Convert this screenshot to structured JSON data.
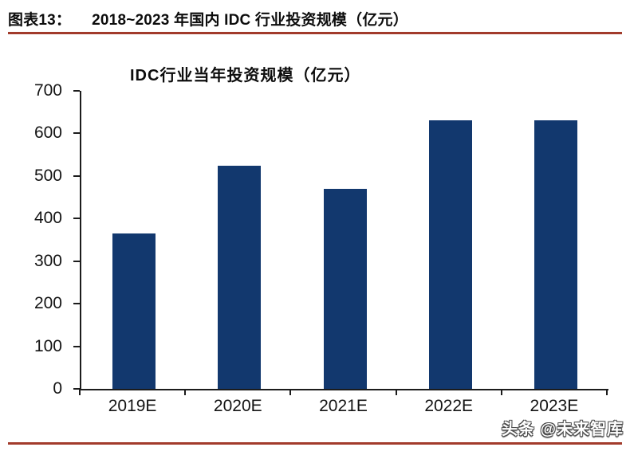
{
  "header": {
    "figure_label": "图表13：",
    "title": "2018~2023 年国内 IDC 行业投资规模（亿元）"
  },
  "watermark": "头条 @未来智库",
  "colors": {
    "bar": "#12386e",
    "rule": "#a23b2c",
    "axis": "#1c1c1c"
  },
  "chart_data": {
    "type": "bar",
    "title": "IDC行业当年投资规模（亿元）",
    "categories": [
      "2019E",
      "2020E",
      "2021E",
      "2022E",
      "2023E"
    ],
    "values": [
      365,
      525,
      470,
      630,
      630
    ],
    "xlabel": "",
    "ylabel": "",
    "ylim": [
      0,
      700
    ],
    "ytick_interval": 100,
    "grid": false,
    "legend": "none"
  }
}
